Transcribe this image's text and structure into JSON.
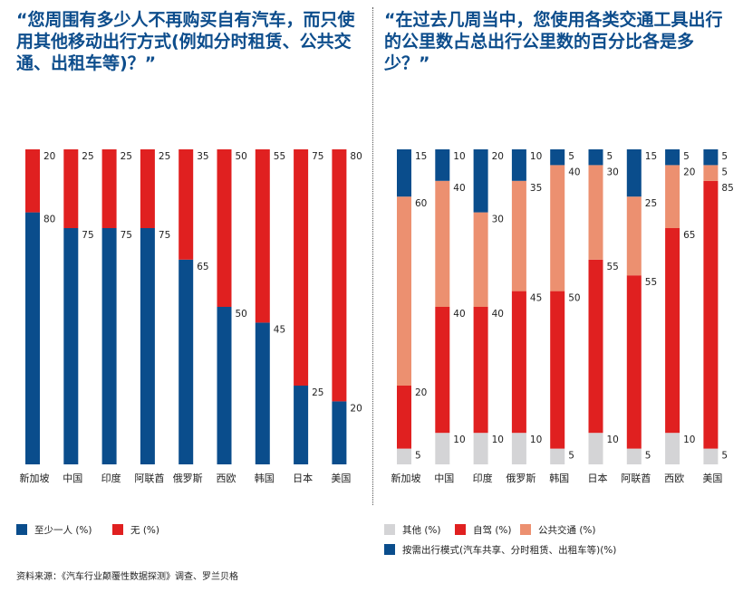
{
  "questions": {
    "left": "“您周围有多少人不再购买自有汽车，而只使用其他移动出行方式(例如分时租赁、公共交通、出租车等)？”",
    "right": "“在过去几周当中，您使用各类交通工具出行的公里数占总出行公里数的百分比各是多少？”"
  },
  "colors": {
    "dark_blue": "#0a4d8c",
    "red": "#e02020",
    "salmon": "#ec9070",
    "grey": "#d4d4d6"
  },
  "legend_left": [
    {
      "label": "至少一人 (%)",
      "color": "#0a4d8c"
    },
    {
      "label": "无 (%)",
      "color": "#e02020"
    }
  ],
  "legend_right": [
    {
      "label": "其他 (%)",
      "color": "#d4d4d6"
    },
    {
      "label": "自驾 (%)",
      "color": "#e02020"
    },
    {
      "label": "公共交通 (%)",
      "color": "#ec9070"
    },
    {
      "label": "按需出行模式(汽车共享、分时租赁、出租车等)(%)",
      "color": "#0a4d8c"
    }
  ],
  "source": "资料来源：《汽车行业颠覆性数据探测》调查、罗兰贝格",
  "chart_data": [
    {
      "type": "bar",
      "stacked": true,
      "categories": [
        "新加坡",
        "中国",
        "印度",
        "阿联酋",
        "俄罗斯",
        "西欧",
        "韩国",
        "日本",
        "美国"
      ],
      "series": [
        {
          "name": "至少一人 (%)",
          "values": [
            80,
            75,
            75,
            75,
            65,
            50,
            45,
            25,
            20
          ]
        },
        {
          "name": "无 (%)",
          "values": [
            20,
            25,
            25,
            25,
            35,
            50,
            55,
            75,
            80
          ]
        }
      ],
      "ylim": [
        0,
        100
      ]
    },
    {
      "type": "bar",
      "stacked": true,
      "categories": [
        "新加坡",
        "中国",
        "印度",
        "俄罗斯",
        "韩国",
        "日本",
        "阿联酋",
        "西欧",
        "美国"
      ],
      "series": [
        {
          "name": "其他 (%)",
          "values": [
            5,
            10,
            10,
            10,
            5,
            10,
            5,
            10,
            5
          ]
        },
        {
          "name": "自驾 (%)",
          "values": [
            20,
            40,
            40,
            45,
            50,
            55,
            55,
            65,
            85
          ]
        },
        {
          "name": "公共交通 (%)",
          "values": [
            60,
            40,
            30,
            35,
            40,
            30,
            25,
            20,
            5
          ]
        },
        {
          "name": "按需出行模式 (%)",
          "values": [
            15,
            10,
            20,
            10,
            5,
            5,
            15,
            5,
            5
          ]
        }
      ],
      "ylim": [
        0,
        100
      ]
    }
  ]
}
